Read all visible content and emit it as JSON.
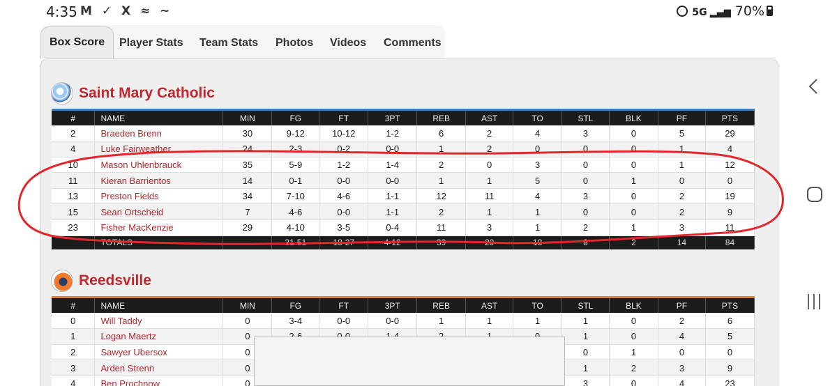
{
  "status_bar": {
    "time": "4:35",
    "left_icons": "M ✓ X ≈ ~",
    "network": "5G",
    "battery": "70%"
  },
  "tabs": [
    {
      "label": "Box Score",
      "active": true
    },
    {
      "label": "Player Stats",
      "active": false
    },
    {
      "label": "Team Stats",
      "active": false
    },
    {
      "label": "Photos",
      "active": false
    },
    {
      "label": "Videos",
      "active": false
    },
    {
      "label": "Comments",
      "active": false
    }
  ],
  "columns": [
    "#",
    "NAME",
    "MIN",
    "FG",
    "FT",
    "3PT",
    "REB",
    "AST",
    "TO",
    "STL",
    "BLK",
    "PF",
    "PTS"
  ],
  "teams": [
    {
      "name": "Saint Mary Catholic",
      "accent": "#3a7ec0",
      "logo_icon": "saint-mary-logo",
      "players": [
        [
          "2",
          "Braeden Brenn",
          "30",
          "9-12",
          "10-12",
          "1-2",
          "6",
          "2",
          "4",
          "3",
          "0",
          "5",
          "29"
        ],
        [
          "4",
          "Luke Fairweather",
          "24",
          "2-3",
          "0-2",
          "0-0",
          "1",
          "2",
          "0",
          "0",
          "0",
          "1",
          "4"
        ],
        [
          "10",
          "Mason Uhlenbrauck",
          "35",
          "5-9",
          "1-2",
          "1-4",
          "2",
          "0",
          "3",
          "0",
          "0",
          "1",
          "12"
        ],
        [
          "11",
          "Kieran Barrientos",
          "14",
          "0-1",
          "0-0",
          "0-0",
          "1",
          "1",
          "5",
          "0",
          "1",
          "0",
          "0"
        ],
        [
          "13",
          "Preston Fields",
          "34",
          "7-10",
          "4-6",
          "1-1",
          "12",
          "11",
          "4",
          "3",
          "0",
          "2",
          "19"
        ],
        [
          "15",
          "Sean Ortscheid",
          "7",
          "4-6",
          "0-0",
          "1-1",
          "2",
          "1",
          "1",
          "0",
          "0",
          "2",
          "9"
        ],
        [
          "23",
          "Fisher MacKenzie",
          "29",
          "4-10",
          "3-5",
          "0-4",
          "11",
          "3",
          "1",
          "2",
          "1",
          "3",
          "11"
        ]
      ],
      "totals": [
        "",
        "TOTALS",
        "",
        "31-51",
        "18-27",
        "4-12",
        "39",
        "20",
        "18",
        "8",
        "2",
        "14",
        "84"
      ]
    },
    {
      "name": "Reedsville",
      "accent": "#ef7a2b",
      "logo_icon": "reedsville-logo",
      "players": [
        [
          "0",
          "Will Taddy",
          "0",
          "3-4",
          "0-0",
          "0-0",
          "1",
          "1",
          "1",
          "1",
          "0",
          "2",
          "6"
        ],
        [
          "1",
          "Logan Maertz",
          "0",
          "2-6",
          "0-0",
          "1-4",
          "2",
          "1",
          "0",
          "1",
          "0",
          "4",
          "5"
        ],
        [
          "2",
          "Sawyer Ubersox",
          "0",
          "",
          "",
          "",
          "",
          "",
          "",
          "0",
          "1",
          "0",
          "0"
        ],
        [
          "3",
          "Arden Strenn",
          "0",
          "",
          "",
          "",
          "",
          "",
          "",
          "1",
          "2",
          "3",
          "9"
        ],
        [
          "4",
          "Ben Prochnow",
          "0",
          "",
          "",
          "",
          "",
          "",
          "",
          "3",
          "0",
          "4",
          "23"
        ]
      ]
    }
  ]
}
